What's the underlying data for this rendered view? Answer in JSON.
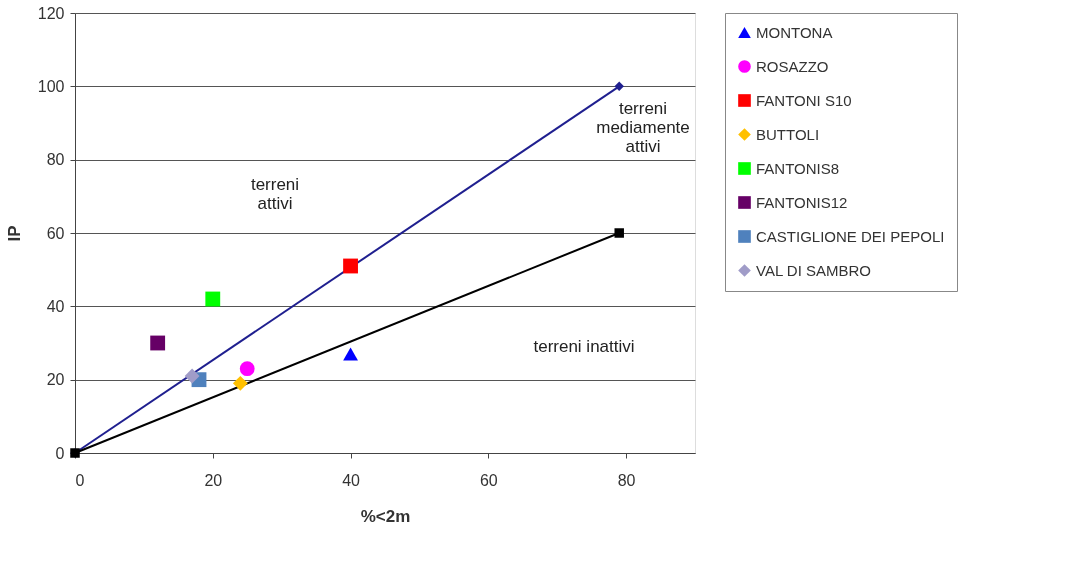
{
  "chart_data": {
    "type": "scatter",
    "xlabel": "%<2m",
    "ylabel": "IP",
    "xlim": [
      0,
      90
    ],
    "ylim": [
      0,
      120
    ],
    "xticks": [
      0,
      20,
      40,
      60,
      80
    ],
    "yticks": [
      0,
      20,
      40,
      60,
      80,
      100,
      120
    ],
    "grid": "y",
    "legend": "right",
    "series": [
      {
        "type": "line",
        "color": "#1f1f8f",
        "x": [
          0,
          79
        ],
        "values": [
          0,
          100
        ],
        "marker": "diamond"
      },
      {
        "type": "line",
        "color": "#000000",
        "x": [
          0,
          79
        ],
        "values": [
          0,
          60
        ],
        "marker": "square"
      },
      {
        "name": "MONTONA",
        "color": "#0000ff",
        "x": [
          40
        ],
        "values": [
          27
        ],
        "marker": "triangle"
      },
      {
        "name": "ROSAZZO",
        "color": "#ff00ff",
        "x": [
          25
        ],
        "values": [
          23
        ],
        "marker": "circle"
      },
      {
        "name": "FANTONI S10",
        "color": "#ff0000",
        "x": [
          40
        ],
        "values": [
          51
        ],
        "marker": "square"
      },
      {
        "name": "BUTTOLI",
        "color": "#ffc000",
        "x": [
          24
        ],
        "values": [
          19
        ],
        "marker": "diamond"
      },
      {
        "name": "FANTONIS8",
        "color": "#00ff00",
        "x": [
          20
        ],
        "values": [
          42
        ],
        "marker": "square"
      },
      {
        "name": "FANTONIS12",
        "color": "#660066",
        "x": [
          12
        ],
        "values": [
          30
        ],
        "marker": "square"
      },
      {
        "name": "CASTIGLIONE DEI PEPOLI",
        "color": "#4f81bd",
        "x": [
          18
        ],
        "values": [
          20
        ],
        "marker": "square"
      },
      {
        "name": "VAL DI SAMBRO",
        "color": "#a09cc8",
        "x": [
          17
        ],
        "values": [
          21
        ],
        "marker": "diamond"
      }
    ],
    "annotations": [
      "terreni\nattivi",
      "terreni\nmediamente\nattivi",
      "terreni inattivi"
    ]
  }
}
